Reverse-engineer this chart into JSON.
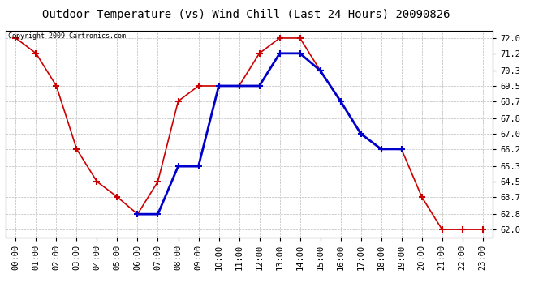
{
  "title": "Outdoor Temperature (vs) Wind Chill (Last 24 Hours) 20090826",
  "copyright": "Copyright 2009 Cartronics.com",
  "x_labels": [
    "00:00",
    "01:00",
    "02:00",
    "03:00",
    "04:00",
    "05:00",
    "06:00",
    "07:00",
    "08:00",
    "09:00",
    "10:00",
    "11:00",
    "12:00",
    "13:00",
    "14:00",
    "15:00",
    "16:00",
    "17:00",
    "18:00",
    "19:00",
    "20:00",
    "21:00",
    "22:00",
    "23:00"
  ],
  "temp_x": [
    0,
    1,
    2,
    3,
    4,
    5,
    6,
    7,
    8,
    9,
    10,
    11,
    12,
    13,
    14,
    15,
    16,
    17,
    18,
    19,
    20,
    21,
    22,
    23
  ],
  "temp_y": [
    72.0,
    71.2,
    69.5,
    66.2,
    64.5,
    63.7,
    62.8,
    64.5,
    68.7,
    69.5,
    69.5,
    69.5,
    71.2,
    72.0,
    72.0,
    70.3,
    68.7,
    67.0,
    66.2,
    66.2,
    63.7,
    62.0,
    62.0,
    62.0
  ],
  "chill_x": [
    6,
    7,
    8,
    9,
    10,
    11,
    12,
    13,
    14,
    15,
    16,
    17,
    18,
    19
  ],
  "chill_y": [
    62.8,
    62.8,
    65.3,
    65.3,
    69.5,
    69.5,
    69.5,
    71.2,
    71.2,
    70.3,
    68.7,
    67.0,
    66.2,
    66.2
  ],
  "temp_color": "#cc0000",
  "chill_color": "#0000cc",
  "bg_color": "#ffffff",
  "plot_bg": "#ffffff",
  "grid_color": "#bbbbbb",
  "ylim_min": 61.6,
  "ylim_max": 72.4,
  "yticks": [
    62.0,
    62.8,
    63.7,
    64.5,
    65.3,
    66.2,
    67.0,
    67.8,
    68.7,
    69.5,
    70.3,
    71.2,
    72.0
  ],
  "title_fontsize": 10,
  "tick_fontsize": 7.5
}
